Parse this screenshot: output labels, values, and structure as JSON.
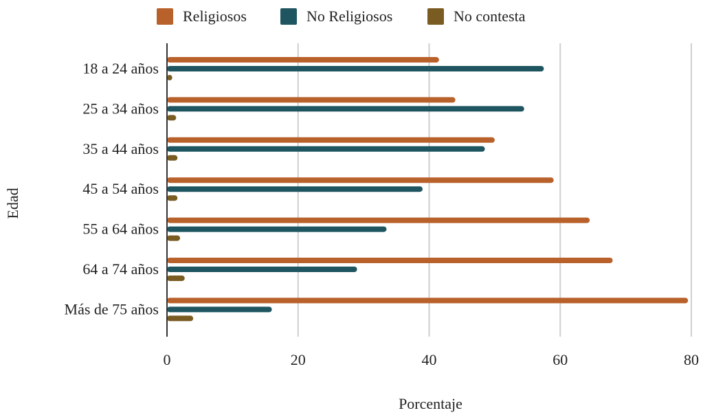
{
  "chart_data": {
    "type": "bar",
    "orientation": "horizontal",
    "categories": [
      "18 a 24 años",
      "25 a 34 años",
      "35 a 44 años",
      "45 a 54 años",
      "55 a 64 años",
      "64 a 74 años",
      "Más de 75 años"
    ],
    "series": [
      {
        "name": "Religiosos",
        "color": "#b9612b",
        "values": [
          41.5,
          44,
          50,
          59,
          64.5,
          68,
          79.5
        ]
      },
      {
        "name": "No Religiosos",
        "color": "#1e5560",
        "values": [
          57.5,
          54.5,
          48.5,
          39,
          33.5,
          29,
          16
        ]
      },
      {
        "name": "No contesta",
        "color": "#7a5b22",
        "values": [
          0.8,
          1.4,
          1.6,
          1.6,
          2,
          2.7,
          4
        ]
      }
    ],
    "xlabel": "Porcentaje",
    "ylabel": "Edad",
    "xlim": [
      0,
      80
    ],
    "xticks": [
      0,
      20,
      40,
      60,
      80
    ],
    "grid": "vertical",
    "legend_position": "top"
  }
}
